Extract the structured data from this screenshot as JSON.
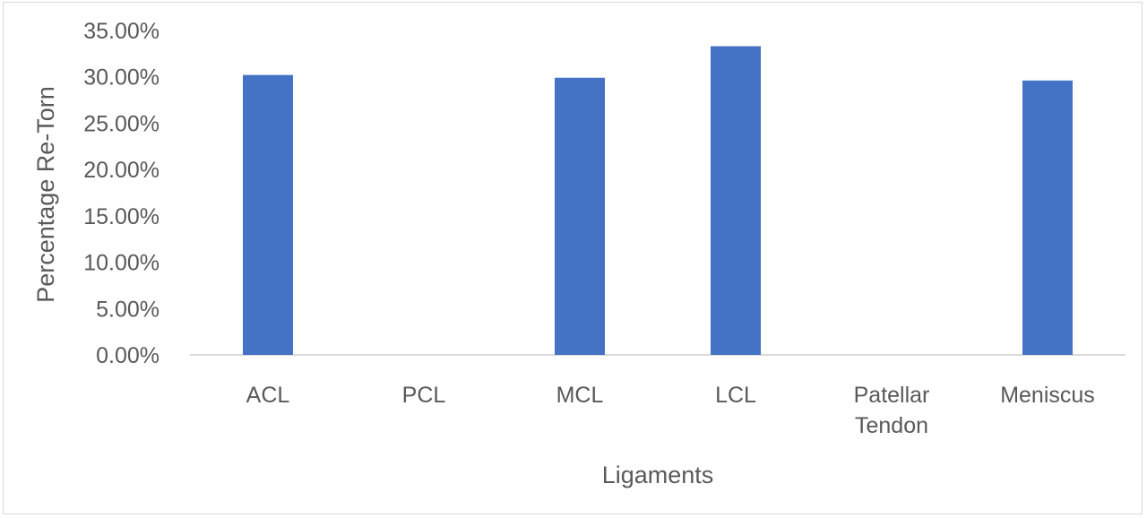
{
  "chart_data": {
    "type": "bar",
    "title": "",
    "xlabel": "Ligaments",
    "ylabel": "Percentage Re-Torn",
    "categories": [
      "ACL",
      "PCL",
      "MCL",
      "LCL",
      "Patellar Tendon",
      "Meniscus"
    ],
    "category_lines": [
      [
        "ACL"
      ],
      [
        "PCL"
      ],
      [
        "MCL"
      ],
      [
        "LCL"
      ],
      [
        "Patellar",
        "Tendon"
      ],
      [
        "Meniscus"
      ]
    ],
    "series": [
      {
        "values": [
          30.2,
          0,
          29.9,
          33.3,
          0,
          29.6
        ],
        "color": "#4472c4"
      }
    ],
    "ylim": [
      0,
      35
    ],
    "yticks": [
      0,
      5,
      10,
      15,
      20,
      25,
      30,
      35
    ],
    "ytick_labels": [
      "0.00%",
      "5.00%",
      "10.00%",
      "15.00%",
      "20.00%",
      "25.00%",
      "30.00%",
      "35.00%"
    ],
    "grid": false,
    "legend": "none"
  }
}
